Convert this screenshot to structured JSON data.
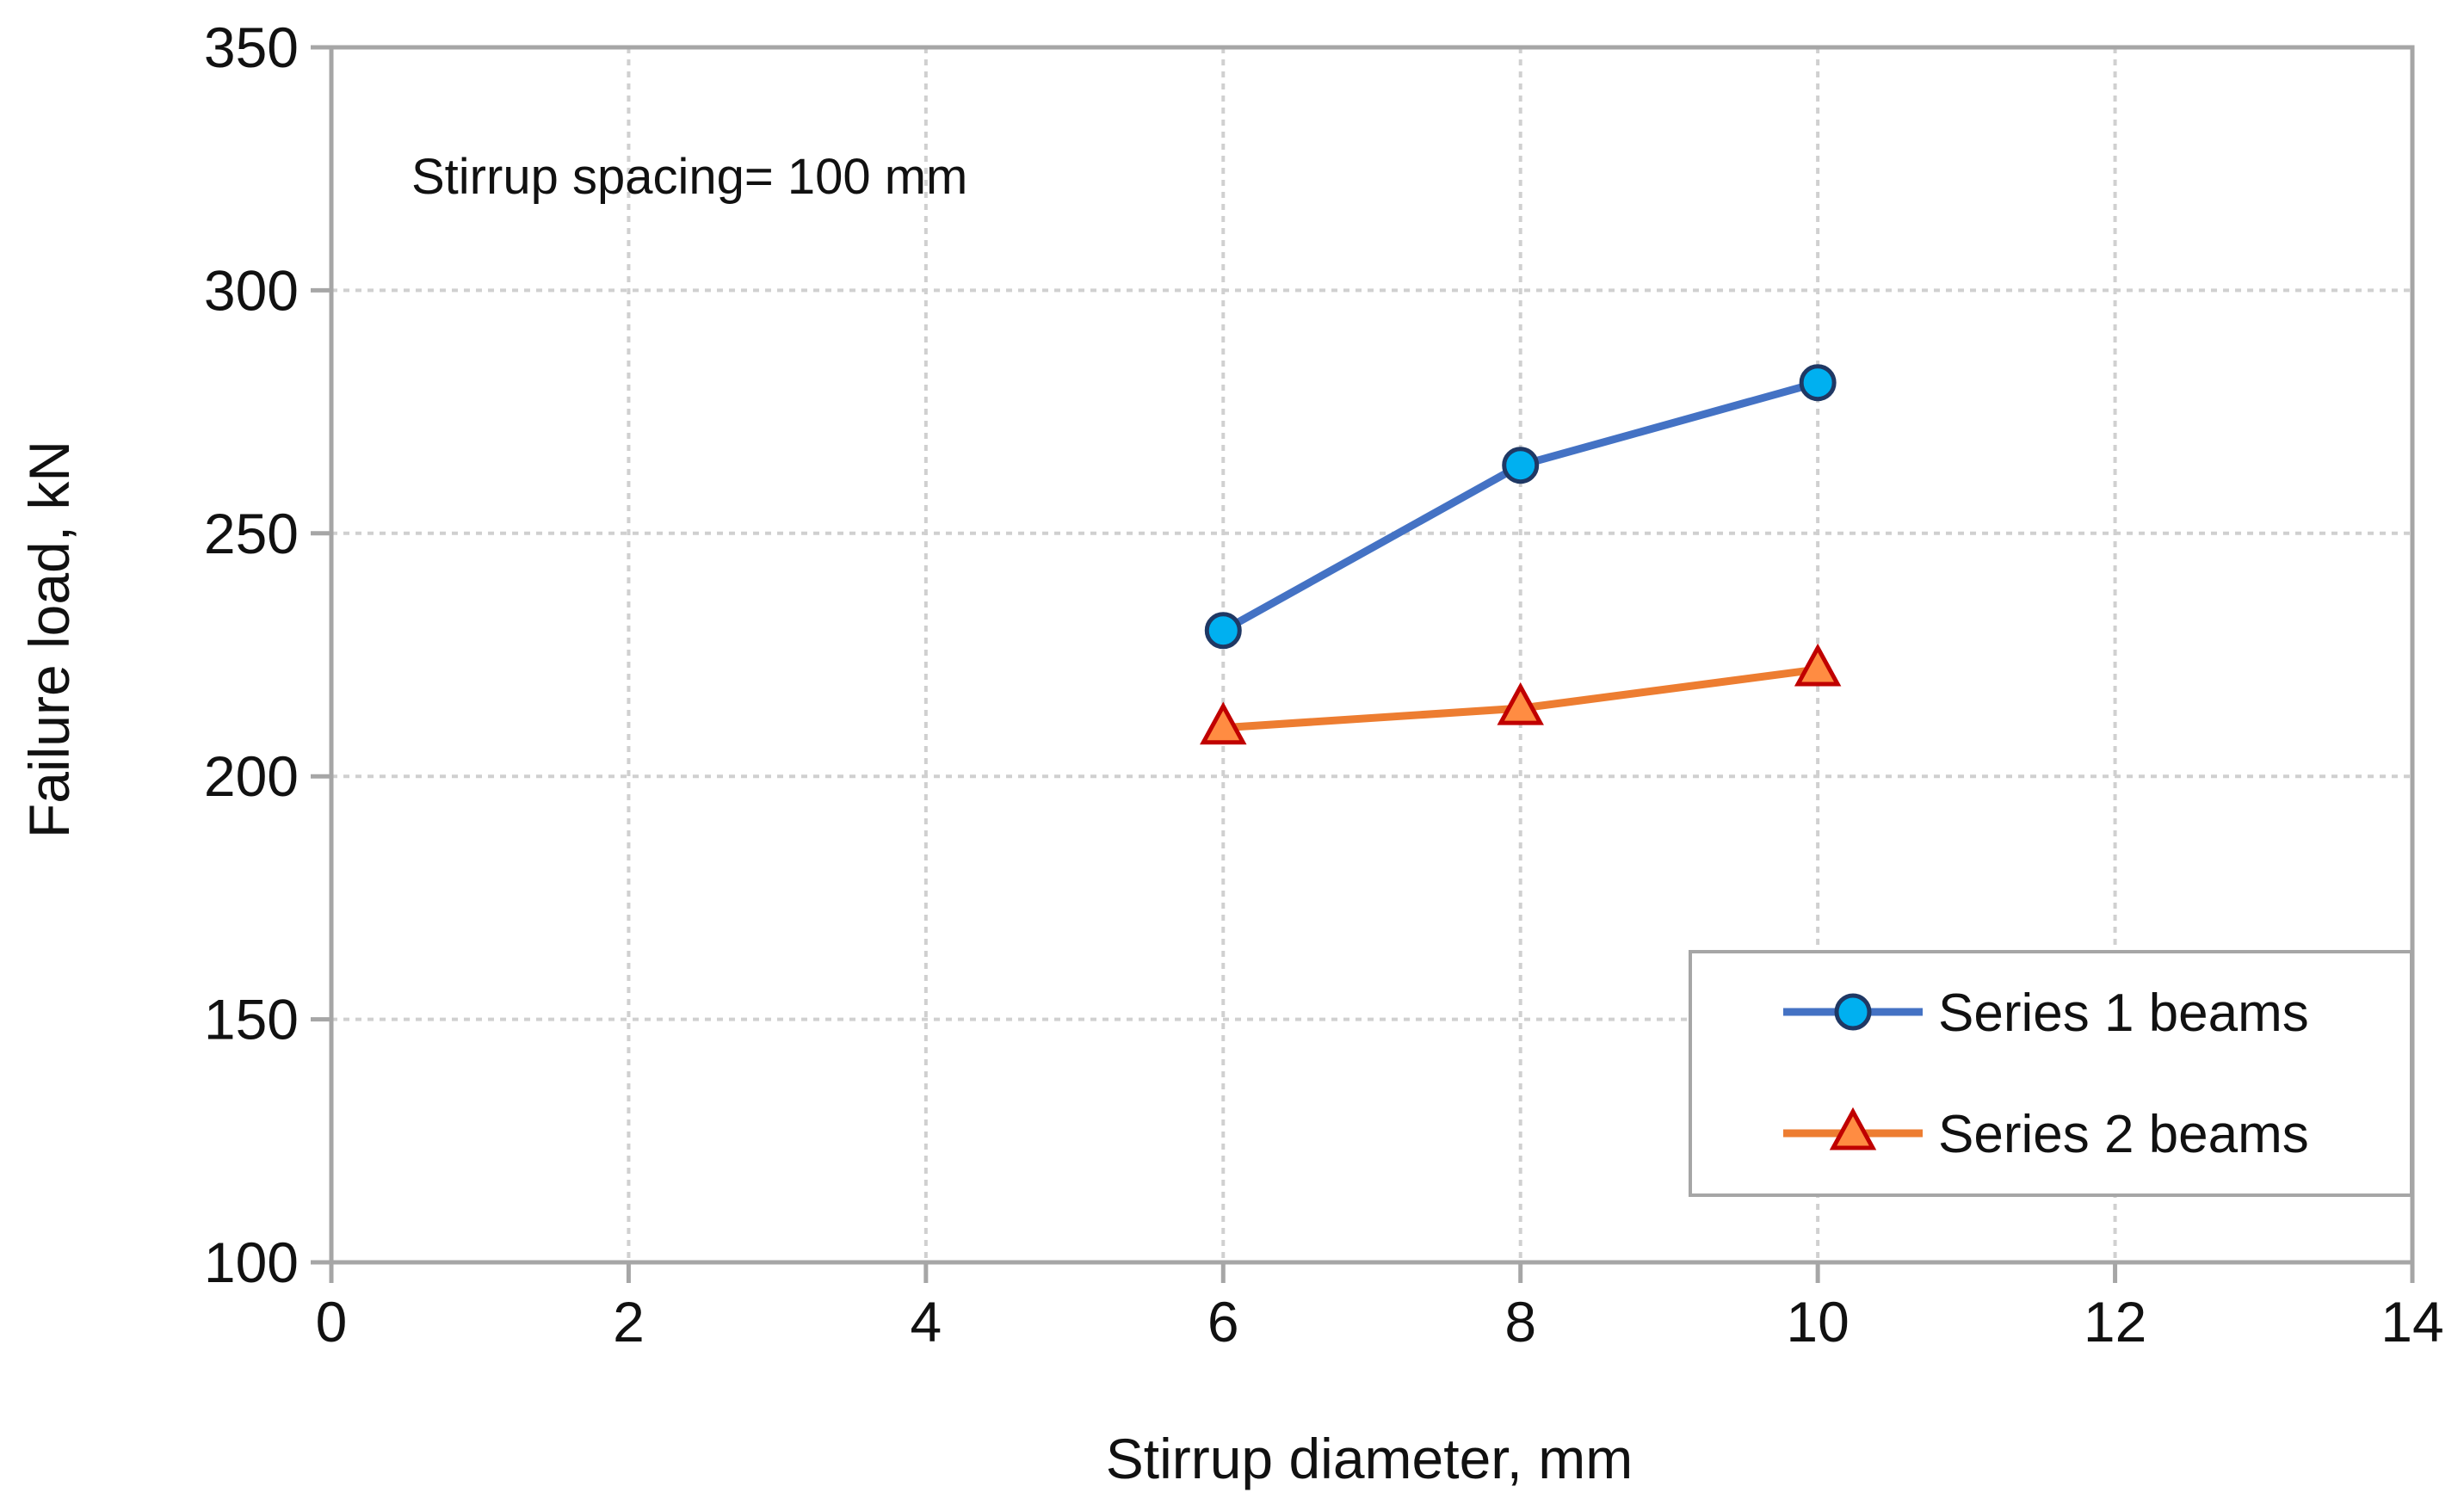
{
  "chart_data": {
    "type": "line",
    "title": "",
    "annotation": "Stirrup spacing= 100 mm",
    "xlabel": "Stirrup diameter, mm",
    "ylabel": "Failure load, kN",
    "xlim": [
      0,
      14
    ],
    "ylim": [
      100,
      350
    ],
    "x_ticks": [
      0,
      2,
      4,
      6,
      8,
      10,
      12,
      14
    ],
    "y_ticks": [
      100,
      150,
      200,
      250,
      300,
      350
    ],
    "grid": true,
    "legend_position": "bottom-right",
    "series": [
      {
        "name": "Series 1 beams",
        "marker": "circle",
        "line_color": "#4472C4",
        "marker_fill": "#00B0F0",
        "marker_edge": "#1F3864",
        "x": [
          6,
          8,
          10
        ],
        "y": [
          230,
          264,
          281
        ]
      },
      {
        "name": "Series 2 beams",
        "marker": "triangle",
        "line_color": "#ED7D31",
        "marker_fill": "#FF8C42",
        "marker_edge": "#C00000",
        "x": [
          6,
          8,
          10
        ],
        "y": [
          210,
          214,
          222
        ]
      }
    ]
  }
}
